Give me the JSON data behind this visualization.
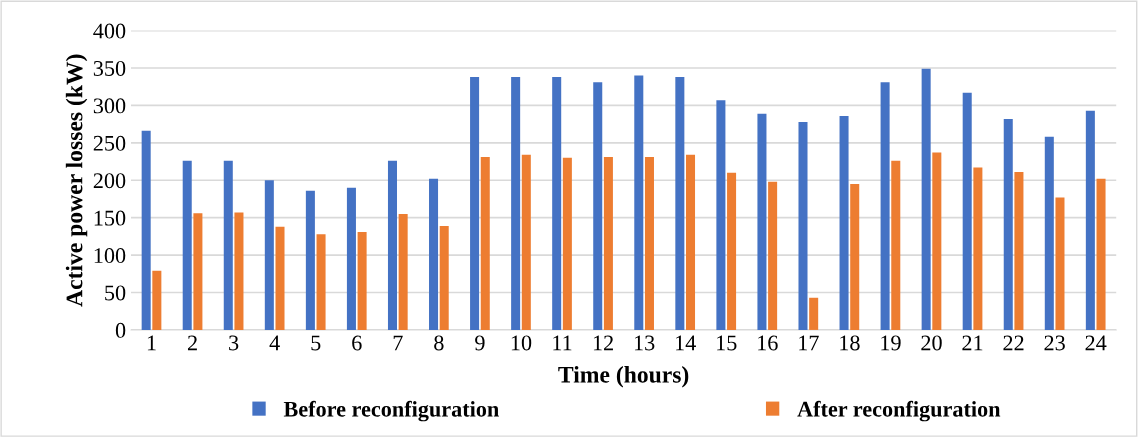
{
  "chart_data": {
    "type": "bar",
    "xlabel": "Time (hours)",
    "ylabel": "Active power losses (kW)",
    "categories": [
      "1",
      "2",
      "3",
      "4",
      "5",
      "6",
      "7",
      "8",
      "9",
      "10",
      "11",
      "12",
      "13",
      "14",
      "15",
      "16",
      "17",
      "18",
      "19",
      "20",
      "21",
      "22",
      "23",
      "24"
    ],
    "series": [
      {
        "name": "Before reconfiguration",
        "color": "#4472c4",
        "values": [
          266,
          226,
          226,
          200,
          186,
          190,
          226,
          202,
          338,
          338,
          338,
          331,
          340,
          338,
          307,
          289,
          278,
          286,
          331,
          349,
          317,
          282,
          258,
          293
        ]
      },
      {
        "name": "After reconfiguration",
        "color": "#ed7d31",
        "values": [
          79,
          156,
          157,
          138,
          128,
          131,
          155,
          139,
          231,
          234,
          230,
          231,
          231,
          234,
          210,
          198,
          43,
          195,
          226,
          237,
          217,
          211,
          177,
          202
        ]
      }
    ],
    "ylim": [
      0,
      400
    ],
    "yticks": [
      0,
      50,
      100,
      150,
      200,
      250,
      300,
      350,
      400
    ],
    "grid": "y",
    "legend": "bottom"
  }
}
